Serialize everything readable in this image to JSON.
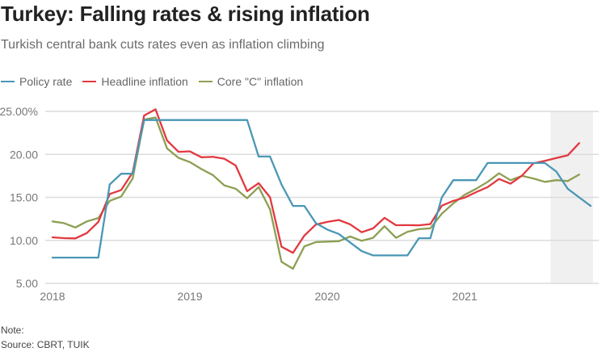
{
  "chart_data": {
    "type": "line",
    "title": "Turkey: Falling rates & rising inflation",
    "subtitle": "Turkish central bank cuts rates even as inflation climbing",
    "xlabel": "",
    "ylabel": "",
    "ylim": [
      5,
      25
    ],
    "yticks": [
      {
        "value": 25,
        "label": "25.00%"
      },
      {
        "value": 20,
        "label": "20.00"
      },
      {
        "value": 15,
        "label": "15.00"
      },
      {
        "value": 10,
        "label": "10.00"
      },
      {
        "value": 5,
        "label": "5.00"
      }
    ],
    "xticks": [
      {
        "month_index": 0,
        "label": "2018"
      },
      {
        "month_index": 12,
        "label": "2019"
      },
      {
        "month_index": 24,
        "label": "2020"
      },
      {
        "month_index": 36,
        "label": "2021"
      }
    ],
    "x_unit": "month index from Jan 2018",
    "grid": true,
    "legend_position": "top-left",
    "highlight_range": {
      "from_month_index": 43.5,
      "to_month_index": 47.2,
      "color": "#f0f0f0"
    },
    "series": [
      {
        "name": "Policy rate",
        "color": "#4a97b5",
        "values": [
          8,
          8,
          8,
          8,
          8,
          16.5,
          17.75,
          17.75,
          24,
          24,
          24,
          24,
          24,
          24,
          24,
          24,
          24,
          24,
          19.75,
          19.75,
          16.5,
          14,
          14,
          12,
          11.25,
          10.75,
          9.75,
          8.75,
          8.25,
          8.25,
          8.25,
          8.25,
          10.25,
          10.25,
          15,
          17,
          17,
          17,
          19,
          19,
          19,
          19,
          19,
          19,
          18,
          16,
          15,
          14
        ]
      },
      {
        "name": "Headline inflation",
        "color": "#e2383f",
        "values": [
          10.35,
          10.26,
          10.23,
          10.85,
          12.15,
          15.39,
          15.85,
          17.9,
          24.52,
          25.24,
          21.62,
          20.3,
          20.35,
          19.67,
          19.71,
          19.5,
          18.71,
          15.72,
          16.65,
          15.01,
          9.26,
          8.55,
          10.56,
          11.84,
          12.15,
          12.37,
          11.86,
          10.94,
          11.39,
          12.62,
          11.76,
          11.77,
          11.75,
          11.89,
          14.03,
          14.6,
          14.97,
          15.61,
          16.19,
          17.14,
          16.59,
          17.53,
          18.95,
          19.25,
          19.58,
          19.89,
          21.31
        ]
      },
      {
        "name": "Core \"C\" inflation",
        "color": "#8c9f52",
        "values": [
          12.2,
          12.0,
          11.5,
          12.2,
          12.6,
          14.6,
          15.1,
          17.2,
          24.05,
          24.3,
          20.7,
          19.6,
          19.1,
          18.3,
          17.6,
          16.4,
          16.0,
          14.9,
          16.2,
          13.6,
          7.5,
          6.7,
          9.3,
          9.8,
          9.85,
          9.9,
          10.45,
          9.95,
          10.3,
          11.65,
          10.3,
          11.0,
          11.3,
          11.4,
          13.1,
          14.3,
          15.3,
          16.0,
          16.8,
          17.8,
          17.0,
          17.5,
          17.2,
          16.8,
          17.0,
          16.9,
          17.65
        ]
      }
    ]
  },
  "footer": {
    "note": "Note:",
    "source": "Source: CBRT, TUIK"
  }
}
